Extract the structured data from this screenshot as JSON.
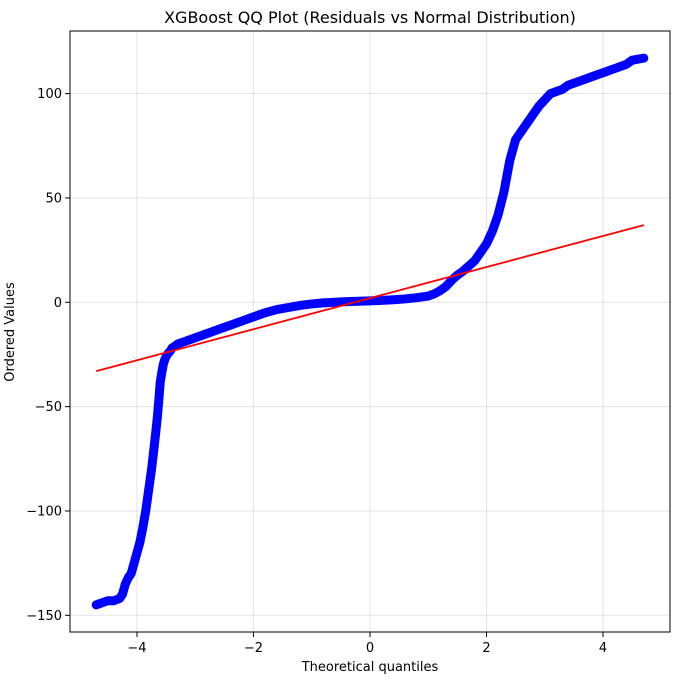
{
  "chart_data": {
    "type": "scatter",
    "title": "XGBoost QQ Plot (Residuals vs Normal Distribution)",
    "xlabel": "Theoretical quantiles",
    "ylabel": "Ordered Values",
    "xlim": [
      -5.15,
      5.15
    ],
    "ylim": [
      -158,
      130
    ],
    "xticks": [
      -4,
      -2,
      0,
      2,
      4
    ],
    "yticks": [
      -150,
      -100,
      -50,
      0,
      50,
      100
    ],
    "xtick_labels": [
      "−4",
      "−2",
      "0",
      "2",
      "4"
    ],
    "ytick_labels": [
      "−150",
      "−100",
      "−50",
      "0",
      "50",
      "100"
    ],
    "grid": true,
    "series": [
      {
        "kind": "points",
        "color": "#0000ff",
        "x": [
          -4.7,
          -4.5,
          -4.4,
          -4.3,
          -4.25,
          -4.2,
          -4.15,
          -4.1,
          -4.05,
          -4.0,
          -3.95,
          -3.9,
          -3.85,
          -3.8,
          -3.75,
          -3.7,
          -3.65,
          -3.62,
          -3.6,
          -3.57,
          -3.55,
          -3.53,
          -3.5,
          -3.48,
          -3.45,
          -3.42,
          -3.4,
          -3.35,
          -3.3,
          -3.2,
          -3.1,
          -3.0,
          -2.8,
          -2.6,
          -2.4,
          -2.2,
          -2.0,
          -1.8,
          -1.6,
          -1.4,
          -1.2,
          -1.0,
          -0.8,
          -0.6,
          -0.4,
          -0.2,
          0.0,
          0.2,
          0.4,
          0.6,
          0.8,
          1.0,
          1.1,
          1.2,
          1.3,
          1.4,
          1.5,
          1.6,
          1.7,
          1.8,
          1.9,
          2.0,
          2.1,
          2.2,
          2.3,
          2.4,
          2.5,
          2.6,
          2.7,
          2.8,
          2.9,
          3.0,
          3.1,
          3.2,
          3.3,
          3.4,
          3.6,
          3.8,
          4.0,
          4.2,
          4.4,
          4.5,
          4.7
        ],
        "y": [
          -145,
          -143,
          -143,
          -142,
          -140,
          -135,
          -132,
          -130,
          -125,
          -120,
          -115,
          -108,
          -100,
          -90,
          -80,
          -68,
          -55,
          -45,
          -38,
          -33,
          -30,
          -28,
          -26,
          -25,
          -24,
          -23,
          -22,
          -21,
          -20,
          -19,
          -18,
          -17,
          -15,
          -13,
          -11,
          -9,
          -7,
          -5,
          -3.5,
          -2.5,
          -1.5,
          -0.8,
          -0.3,
          0.0,
          0.3,
          0.5,
          0.7,
          0.9,
          1.2,
          1.6,
          2.2,
          3.0,
          4.0,
          5.5,
          7.5,
          10.5,
          13,
          15,
          17.5,
          20,
          24,
          28,
          34,
          42,
          53,
          68,
          78,
          82,
          86,
          90,
          94,
          97,
          100,
          101,
          102,
          104,
          106,
          108,
          110,
          112,
          114,
          116,
          117
        ]
      },
      {
        "kind": "line",
        "color": "#ff0000",
        "x": [
          -4.7,
          4.7
        ],
        "y": [
          -33,
          37
        ]
      }
    ]
  }
}
